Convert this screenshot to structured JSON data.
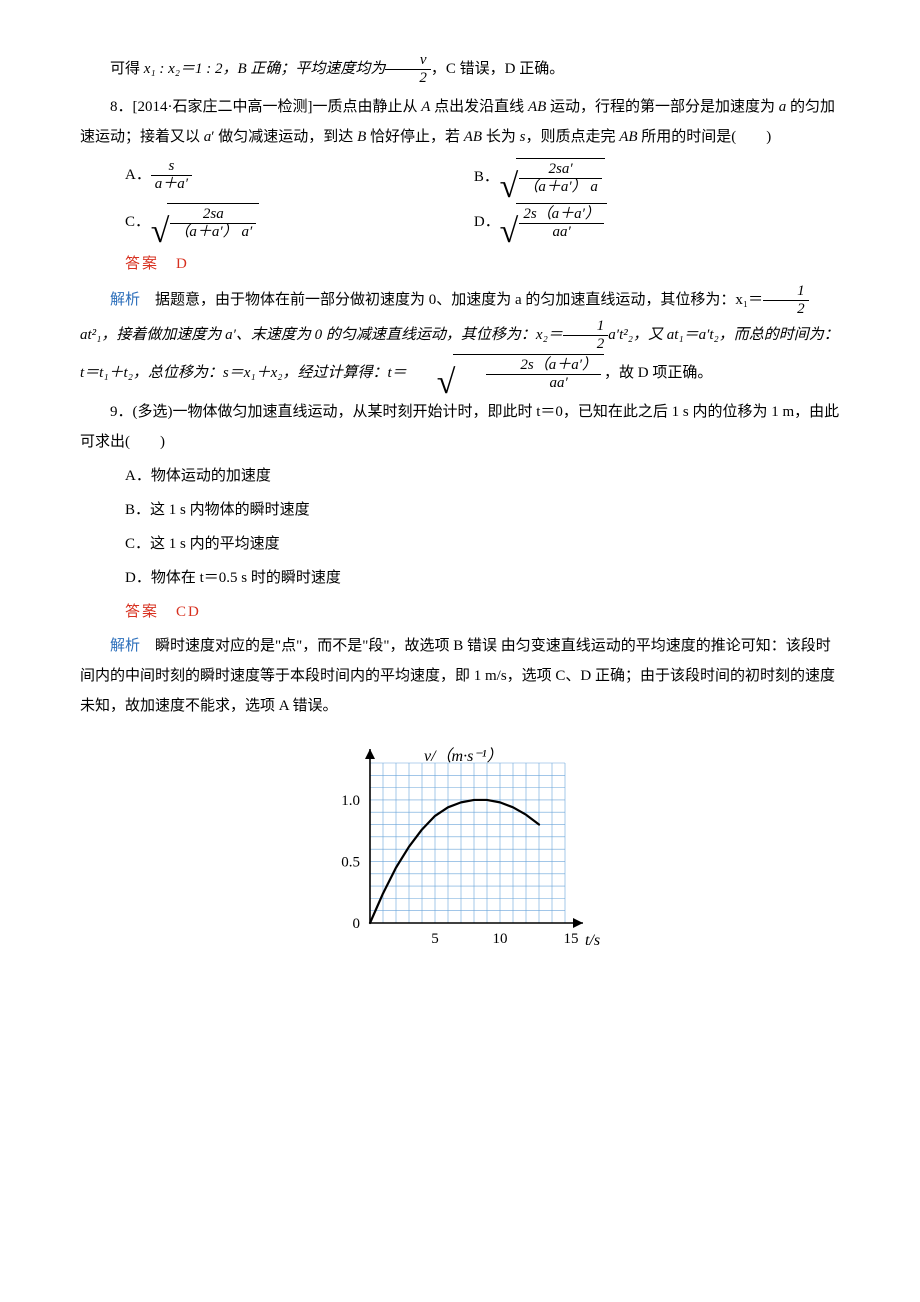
{
  "intro_line": {
    "prefix": "可得 ",
    "ratio": "x₁ : x₂＝1 : 2，B 正确；平均速度均为",
    "frac_num": "v",
    "frac_den": "2",
    "suffix": "，C 错误，D 正确。"
  },
  "q8": {
    "stem_prefix": "8．[2014·石家庄二中高一检测]一质点由静止从 ",
    "stem_mid1": " 点出发沿直线 ",
    "stem_mid2": " 运动，行程的第一部分是加速度为 ",
    "stem_mid3": " 的匀加速运动；接着又以 ",
    "stem_mid4": "′ 做匀减速运动，到达 ",
    "stem_mid5": " 恰好停止，若 ",
    "stem_mid6": " 长为 ",
    "stem_end": "，则质点走完 ",
    "stem_tail": " 所用的时间是(　　)",
    "A_num": "s",
    "A_den": "a＋a′",
    "B_num": "2sa′",
    "B_den": "（a＋a′） a",
    "C_num": "2sa",
    "C_den": "（a＋a′） a′",
    "D_num": "2s（a＋a′）",
    "D_den": "aa′",
    "answer": "答案　D",
    "ana_label": "解析",
    "ana_text1": "　据题意，由于物体在前一部分做初速度为 0、加速度为 a 的匀加速直线运动，其位移为：x₁＝",
    "ana_frac1_num": "1",
    "ana_frac1_den": "2",
    "ana_text2": "at²₁，接着做加速度为 a′、末速度为 0 的匀减速直线运动，其位移为：x₂＝",
    "ana_frac2_num": "1",
    "ana_frac2_den": "2",
    "ana_text3": "a′t²₂，又 at₁＝a′t₂，而总的时间为：t＝t₁＋t₂，总位移为：s＝x₁＋x₂，经过计算得：t＝",
    "ana_sqrt_num": "2s（a＋a′）",
    "ana_sqrt_den": "aa′",
    "ana_text4": "，故 D 项正确。"
  },
  "q9": {
    "stem": "9．(多选)一物体做匀加速直线运动，从某时刻开始计时，即此时 t＝0，已知在此之后 1 s 内的位移为 1 m，由此可求出(　　)",
    "A": "A．物体运动的加速度",
    "B": "B．这 1 s 内物体的瞬时速度",
    "C": "C．这 1 s 内的平均速度",
    "D": "D．物体在 t＝0.5 s 时的瞬时速度",
    "answer": "答案　CD",
    "ana_label": "解析",
    "ana_text": "　瞬时速度对应的是\"点\"，而不是\"段\"，故选项 B 错误  由匀变速直线运动的平均速度的推论可知：该段时间内的中间时刻的瞬时速度等于本段时间内的平均速度，即 1 m/s，选项 C、D 正确；由于该段时间的初时刻的速度未知，故加速度不能求，选项 A 错误。"
  },
  "chart": {
    "type": "line",
    "y_label": "v/（m·s⁻¹）",
    "x_label": "t/s",
    "x_ticks": [
      "5",
      "10",
      "15"
    ],
    "y_ticks": [
      "0",
      "0.5",
      "1.0"
    ],
    "xlim": [
      0,
      15
    ],
    "ylim": [
      0,
      1.3
    ],
    "grid_minor_x_step": 1,
    "grid_minor_y_step": 0.1,
    "grid_color": "#6aa5d9",
    "axis_color": "#000000",
    "background": "#ffffff",
    "curve_color": "#000000",
    "curve_width": 2.2,
    "curve_points": [
      [
        0,
        0
      ],
      [
        1,
        0.24
      ],
      [
        2,
        0.45
      ],
      [
        3,
        0.62
      ],
      [
        4,
        0.76
      ],
      [
        5,
        0.87
      ],
      [
        6,
        0.94
      ],
      [
        7,
        0.98
      ],
      [
        8,
        1.0
      ],
      [
        9,
        1.0
      ],
      [
        10,
        0.98
      ],
      [
        11,
        0.94
      ],
      [
        12,
        0.88
      ],
      [
        13,
        0.8
      ]
    ]
  }
}
